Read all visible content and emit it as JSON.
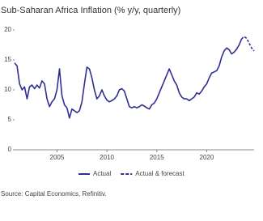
{
  "chart_data": {
    "type": "line",
    "title": "Sub-Saharan Africa Inflation (% y/y, quarterly)",
    "source": "Source: Capital Economics, Refinitiv.",
    "x": [
      2000.75,
      2001,
      2001.25,
      2001.5,
      2001.75,
      2002,
      2002.25,
      2002.5,
      2002.75,
      2003,
      2003.25,
      2003.5,
      2003.75,
      2004,
      2004.25,
      2004.5,
      2004.75,
      2005,
      2005.25,
      2005.5,
      2005.75,
      2006,
      2006.25,
      2006.5,
      2006.75,
      2007,
      2007.25,
      2007.5,
      2007.75,
      2008,
      2008.25,
      2008.5,
      2008.75,
      2009,
      2009.25,
      2009.5,
      2009.75,
      2010,
      2010.25,
      2010.5,
      2010.75,
      2011,
      2011.25,
      2011.5,
      2011.75,
      2012,
      2012.25,
      2012.5,
      2012.75,
      2013,
      2013.25,
      2013.5,
      2013.75,
      2014,
      2014.25,
      2014.5,
      2014.75,
      2015,
      2015.25,
      2015.5,
      2015.75,
      2016,
      2016.25,
      2016.5,
      2016.75,
      2017,
      2017.25,
      2017.5,
      2017.75,
      2018,
      2018.25,
      2018.5,
      2018.75,
      2019,
      2019.25,
      2019.5,
      2019.75,
      2020,
      2020.25,
      2020.5,
      2020.75,
      2021,
      2021.25,
      2021.5,
      2021.75,
      2022,
      2022.25,
      2022.5,
      2022.75,
      2023,
      2023.25,
      2023.5,
      2023.75,
      2024,
      2024.25,
      2024.5,
      2024.75
    ],
    "series": [
      {
        "name": "Actual",
        "color": "#2f2e91",
        "dashed": false,
        "values": [
          14.5,
          14,
          11,
          10,
          10.5,
          8.5,
          10.5,
          10.8,
          10.2,
          10.8,
          10.3,
          11.5,
          11,
          8.5,
          7.2,
          8,
          8.5,
          10,
          13.5,
          9,
          7.5,
          7,
          5.3,
          6.8,
          6.5,
          6.2,
          6.5,
          8,
          11,
          13.8,
          13.5,
          12,
          10,
          8.5,
          9,
          10,
          9,
          8.3,
          8,
          8.2,
          8.5,
          9,
          10,
          10.2,
          9.8,
          8.5,
          7.2,
          7,
          7.2,
          7,
          7.2,
          7.5,
          7.3,
          7,
          6.8,
          7.5,
          7.8,
          8.5,
          9.5,
          10.5,
          11.5,
          12.5,
          13.5,
          12.5,
          11.5,
          10.8,
          9.5,
          8.8,
          8.5,
          8.5,
          8.2,
          8.5,
          8.8,
          9.5,
          9.3,
          9.8,
          10.5,
          11,
          12,
          12.8,
          13,
          13.2,
          14,
          15.5,
          16.5,
          17,
          16.7,
          16,
          16.3,
          16.8,
          17.5,
          18.5,
          null,
          null,
          null,
          null,
          null
        ]
      },
      {
        "name": "Actual & forecast",
        "color": "#2f2e91",
        "dashed": true,
        "values": [
          null,
          null,
          null,
          null,
          null,
          null,
          null,
          null,
          null,
          null,
          null,
          null,
          null,
          null,
          null,
          null,
          null,
          null,
          null,
          null,
          null,
          null,
          null,
          null,
          null,
          null,
          null,
          null,
          null,
          null,
          null,
          null,
          null,
          null,
          null,
          null,
          null,
          null,
          null,
          null,
          null,
          null,
          null,
          null,
          null,
          null,
          null,
          null,
          null,
          null,
          null,
          null,
          null,
          null,
          null,
          null,
          null,
          null,
          null,
          null,
          null,
          null,
          null,
          null,
          null,
          null,
          null,
          null,
          null,
          null,
          null,
          null,
          null,
          null,
          null,
          null,
          null,
          null,
          null,
          null,
          null,
          null,
          null,
          null,
          null,
          null,
          null,
          null,
          null,
          null,
          null,
          18.5,
          18.9,
          18.6,
          17.8,
          17,
          16.5
        ]
      }
    ],
    "xlim": [
      2000.75,
      2024.75
    ],
    "xticks": [
      2005,
      2010,
      2015,
      2020
    ],
    "ylim": [
      0,
      20
    ],
    "yticks": [
      0,
      5,
      10,
      15,
      20
    ]
  }
}
